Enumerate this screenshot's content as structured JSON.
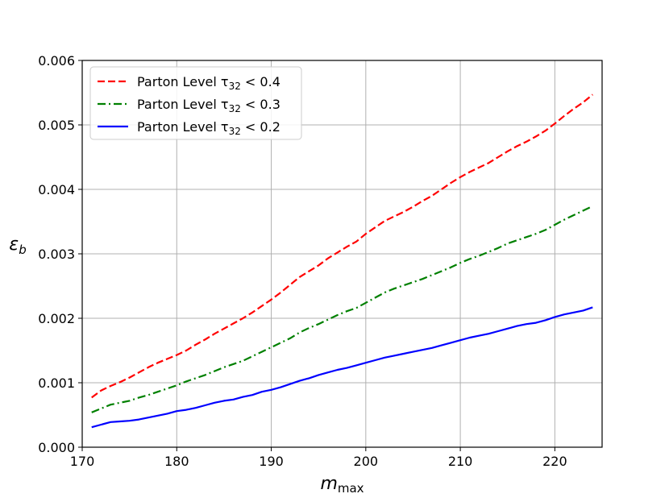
{
  "chart_data": {
    "type": "line",
    "title": "",
    "xlabel": "m",
    "xlabel_sub": "max",
    "ylabel": "ε",
    "ylabel_sub": "b",
    "xlim": [
      170,
      225
    ],
    "ylim": [
      0.0,
      0.006
    ],
    "xticks": [
      170,
      180,
      190,
      200,
      210,
      220
    ],
    "xtick_labels": [
      "170",
      "180",
      "190",
      "200",
      "210",
      "220"
    ],
    "yticks": [
      0.0,
      0.001,
      0.002,
      0.003,
      0.004,
      0.005,
      0.006
    ],
    "ytick_labels": [
      "0.000",
      "0.001",
      "0.002",
      "0.003",
      "0.004",
      "0.005",
      "0.006"
    ],
    "grid": true,
    "legend_position": "upper-left",
    "x": [
      171,
      172,
      173,
      174,
      175,
      176,
      177,
      178,
      179,
      180,
      181,
      182,
      183,
      184,
      185,
      186,
      187,
      188,
      189,
      190,
      191,
      192,
      193,
      194,
      195,
      196,
      197,
      198,
      199,
      200,
      201,
      202,
      203,
      204,
      205,
      206,
      207,
      208,
      209,
      210,
      211,
      212,
      213,
      214,
      215,
      216,
      217,
      218,
      219,
      220,
      221,
      222,
      223,
      224
    ],
    "series": [
      {
        "name": "Parton Level τ",
        "name_sub": "32",
        "name_rel": " < 0.4",
        "color": "#ff0000",
        "dash": "dashed",
        "values": [
          0.00077,
          0.00088,
          0.00095,
          0.00101,
          0.00108,
          0.00116,
          0.00124,
          0.00131,
          0.00137,
          0.00143,
          0.0015,
          0.00159,
          0.00167,
          0.00176,
          0.00184,
          0.00192,
          0.002,
          0.00209,
          0.00219,
          0.00229,
          0.0024,
          0.00252,
          0.00264,
          0.00273,
          0.00282,
          0.00293,
          0.00302,
          0.00311,
          0.00319,
          0.00331,
          0.00341,
          0.00351,
          0.00358,
          0.00365,
          0.00373,
          0.00382,
          0.0039,
          0.004,
          0.0041,
          0.00419,
          0.00427,
          0.00434,
          0.00441,
          0.0045,
          0.00459,
          0.00467,
          0.00474,
          0.00482,
          0.00491,
          0.00502,
          0.00514,
          0.00525,
          0.00535,
          0.00547
        ]
      },
      {
        "name": "Parton Level τ",
        "name_sub": "32",
        "name_rel": " < 0.3",
        "color": "#008000",
        "dash": "dashdot",
        "values": [
          0.00054,
          0.0006,
          0.00066,
          0.00069,
          0.00072,
          0.00077,
          0.00081,
          0.00086,
          0.00091,
          0.00096,
          0.00102,
          0.00107,
          0.00112,
          0.00118,
          0.00124,
          0.00129,
          0.00134,
          0.00141,
          0.00148,
          0.00155,
          0.00162,
          0.00169,
          0.00178,
          0.00185,
          0.00191,
          0.00198,
          0.00205,
          0.00211,
          0.00216,
          0.00224,
          0.00232,
          0.0024,
          0.00246,
          0.00251,
          0.00256,
          0.00261,
          0.00267,
          0.00273,
          0.00279,
          0.00286,
          0.00292,
          0.00297,
          0.00303,
          0.00309,
          0.00316,
          0.00321,
          0.00326,
          0.00331,
          0.00337,
          0.00345,
          0.00353,
          0.0036,
          0.00367,
          0.00374
        ]
      },
      {
        "name": "Parton Level τ",
        "name_sub": "32",
        "name_rel": " < 0.2",
        "color": "#0000ff",
        "dash": "solid",
        "values": [
          0.00031,
          0.00035,
          0.00039,
          0.0004,
          0.00041,
          0.00043,
          0.00046,
          0.00049,
          0.00052,
          0.00056,
          0.00058,
          0.00061,
          0.00065,
          0.00069,
          0.00072,
          0.00074,
          0.00078,
          0.00081,
          0.00086,
          0.00089,
          0.00093,
          0.00098,
          0.00103,
          0.00107,
          0.00112,
          0.00116,
          0.0012,
          0.00123,
          0.00127,
          0.00131,
          0.00135,
          0.00139,
          0.00142,
          0.00145,
          0.00148,
          0.00151,
          0.00154,
          0.00158,
          0.00162,
          0.00166,
          0.0017,
          0.00173,
          0.00176,
          0.0018,
          0.00184,
          0.00188,
          0.00191,
          0.00193,
          0.00197,
          0.00202,
          0.00206,
          0.00209,
          0.00212,
          0.00217
        ]
      }
    ]
  }
}
